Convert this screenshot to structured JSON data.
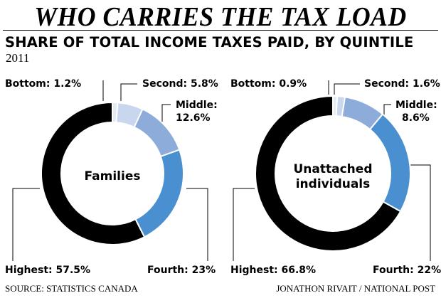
{
  "headline": "WHO CARRIES THE TAX LOAD",
  "subtitle": "SHARE OF TOTAL INCOME TAXES PAID, BY QUINTILE",
  "year": "2011",
  "source": "SOURCE: STATISTICS CANADA",
  "credit": "JONATHON RIVAIT / NATIONAL POST",
  "colors": {
    "bottom": "#e4ebf5",
    "second": "#c8d6ee",
    "middle": "#8eacd9",
    "fourth": "#4a8fcf",
    "highest": "#000000",
    "separator": "#ffffff"
  },
  "chart_data": [
    {
      "type": "pie",
      "center_label": "Families",
      "categories": [
        "Bottom",
        "Second",
        "Middle",
        "Fourth",
        "Highest"
      ],
      "values": [
        1.2,
        5.8,
        12.6,
        23,
        57.5
      ],
      "labels": {
        "bottom": "Bottom: 1.2%",
        "second": "Second: 5.8%",
        "middle_name": "Middle:",
        "middle_value": "12.6%",
        "fourth": "Fourth: 23%",
        "highest": "Highest: 57.5%"
      }
    },
    {
      "type": "pie",
      "center_label_line1": "Unattached",
      "center_label_line2": "individuals",
      "categories": [
        "Bottom",
        "Second",
        "Middle",
        "Fourth",
        "Highest"
      ],
      "values": [
        0.9,
        1.6,
        8.6,
        22,
        66.8
      ],
      "labels": {
        "bottom": "Bottom: 0.9%",
        "second": "Second: 1.6%",
        "middle_name": "Middle:",
        "middle_value": "8.6%",
        "fourth": "Fourth: 22%",
        "highest": "Highest: 66.8%"
      }
    }
  ]
}
